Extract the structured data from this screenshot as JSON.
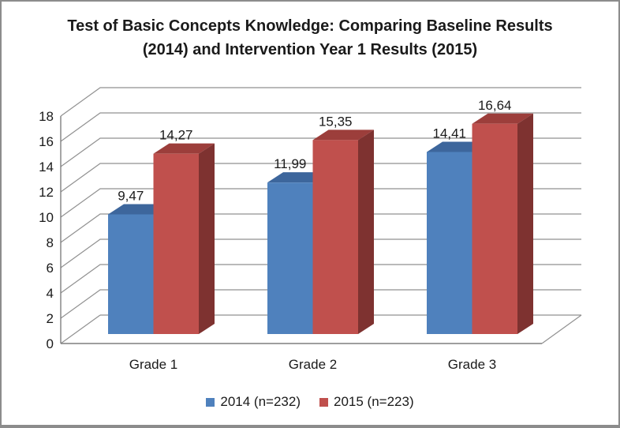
{
  "page": {
    "background": "#ffffff",
    "frame_border_color": "#8c8c8c"
  },
  "chart_data": {
    "type": "bar",
    "projection": "3d",
    "title": "Test of Basic Concepts Knowledge: Comparing Baseline Results (2014) and Intervention Year 1 Results (2015)",
    "categories": [
      "Grade 1",
      "Grade 2",
      "Grade 3"
    ],
    "series": [
      {
        "name": "2014 (n=232)",
        "values": [
          9.47,
          11.99,
          14.41
        ],
        "color": "#4F81BD",
        "color_top": "#3D669C",
        "color_side": "#2E4E79"
      },
      {
        "name": "2015 (n=223)",
        "values": [
          14.27,
          15.35,
          16.64
        ],
        "color": "#C0504D",
        "color_top": "#9C3E3B",
        "color_side": "#7E3230"
      }
    ],
    "ylim": [
      0,
      18
    ],
    "ytick_step": 2,
    "yticks": [
      0,
      2,
      4,
      6,
      8,
      10,
      12,
      14,
      16,
      18
    ],
    "decimal_separator": ",",
    "data_labels": true,
    "grid": true,
    "gridline_color": "#919191",
    "axis_color": "#7f7f7f",
    "text_color": "#1a1a1a",
    "legend_position": "bottom"
  }
}
